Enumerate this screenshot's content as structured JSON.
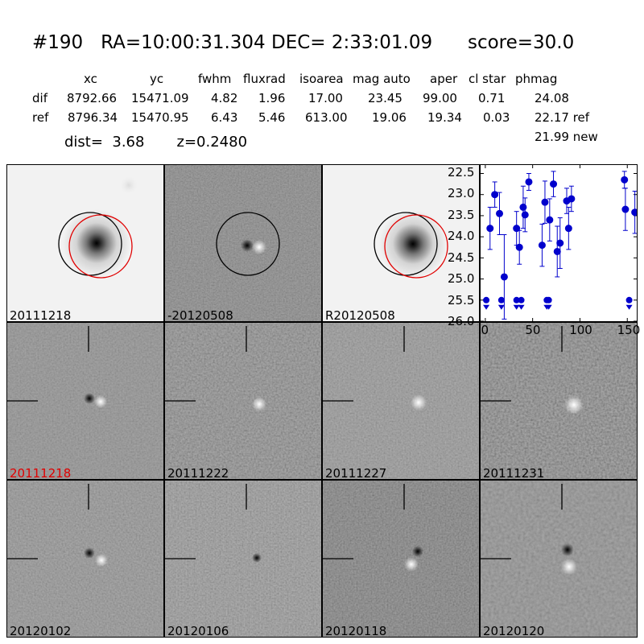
{
  "header": {
    "title": "#190   RA=10:00:31.304 DEC= 2:33:01.09      score=30.0",
    "columns": [
      "xc",
      "yc",
      "fwhm",
      "fluxrad",
      "isoarea",
      "mag auto",
      "aper",
      "cl star",
      "phmag"
    ],
    "rows": [
      {
        "name": "dif",
        "values": [
          "8792.66",
          "15471.09",
          "4.82",
          "1.96",
          "17.00",
          "23.45",
          "99.00",
          "0.71",
          "24.08"
        ]
      },
      {
        "name": "ref",
        "values": [
          "8796.34",
          "15470.95",
          "6.43",
          "5.46",
          "613.00",
          "19.06",
          "19.34",
          "0.03",
          "22.17 ref"
        ]
      }
    ],
    "new_mag": "21.99 new",
    "dist_line": "dist=  3.68       z=0.2480"
  },
  "panels": [
    {
      "label": "20111218",
      "kind": "galaxy",
      "circles": "both",
      "label_color": "#000000"
    },
    {
      "label": "-20120508",
      "kind": "dipole",
      "circles": "black",
      "label_color": "#000000"
    },
    {
      "label": "R20120508",
      "kind": "galaxy",
      "circles": "both",
      "label_color": "#000000"
    },
    {
      "label": "20111218",
      "kind": "diff",
      "label_color": "#e00000"
    },
    {
      "label": "20111222",
      "kind": "diff",
      "label_color": "#000000"
    },
    {
      "label": "20111227",
      "kind": "diff",
      "label_color": "#000000"
    },
    {
      "label": "20111231",
      "kind": "diff",
      "label_color": "#000000"
    },
    {
      "label": "20120102",
      "kind": "diff",
      "label_color": "#000000"
    },
    {
      "label": "20120106",
      "kind": "diff",
      "label_color": "#000000"
    },
    {
      "label": "20120118",
      "kind": "diff",
      "label_color": "#000000"
    },
    {
      "label": "20120120",
      "kind": "diff",
      "label_color": "#000000"
    }
  ],
  "chart_data": {
    "type": "scatter",
    "title": "",
    "xlabel": "",
    "ylabel": "",
    "xlim": [
      -5,
      160
    ],
    "ylim": [
      26.0,
      22.3
    ],
    "y_inverted": true,
    "x_ticks": [
      0,
      50,
      100,
      150
    ],
    "y_ticks": [
      22.5,
      23.0,
      23.5,
      24.0,
      24.5,
      25.0,
      25.5,
      26.0
    ],
    "color": "#0000cc",
    "detections": [
      {
        "x": 5,
        "y": 23.8,
        "err": 0.5
      },
      {
        "x": 10,
        "y": 23.0,
        "err": 0.3
      },
      {
        "x": 15,
        "y": 23.45,
        "err": 0.5
      },
      {
        "x": 20,
        "y": 24.95,
        "err": 1.0
      },
      {
        "x": 33,
        "y": 23.8,
        "err": 0.4
      },
      {
        "x": 36,
        "y": 24.25,
        "err": 0.4
      },
      {
        "x": 40,
        "y": 23.3,
        "err": 0.5
      },
      {
        "x": 42,
        "y": 23.48,
        "err": 0.4
      },
      {
        "x": 46,
        "y": 22.7,
        "err": 0.2
      },
      {
        "x": 60,
        "y": 24.2,
        "err": 0.5
      },
      {
        "x": 63,
        "y": 23.18,
        "err": 0.5
      },
      {
        "x": 68,
        "y": 23.6,
        "err": 0.5
      },
      {
        "x": 72,
        "y": 22.75,
        "err": 0.3
      },
      {
        "x": 76,
        "y": 24.35,
        "err": 0.6
      },
      {
        "x": 79,
        "y": 24.15,
        "err": 0.6
      },
      {
        "x": 86,
        "y": 23.15,
        "err": 0.3
      },
      {
        "x": 88,
        "y": 23.8,
        "err": 0.5
      },
      {
        "x": 91,
        "y": 23.1,
        "err": 0.3
      },
      {
        "x": 147,
        "y": 22.65,
        "err": 0.2
      },
      {
        "x": 148,
        "y": 23.35,
        "err": 0.5
      },
      {
        "x": 158,
        "y": 23.42,
        "err": 0.5
      }
    ],
    "upper_limits": [
      {
        "x": 1,
        "y": 25.5
      },
      {
        "x": 17,
        "y": 25.5
      },
      {
        "x": 33,
        "y": 25.5
      },
      {
        "x": 38,
        "y": 25.5
      },
      {
        "x": 65,
        "y": 25.5
      },
      {
        "x": 67,
        "y": 25.5
      },
      {
        "x": 152,
        "y": 25.5
      }
    ]
  }
}
